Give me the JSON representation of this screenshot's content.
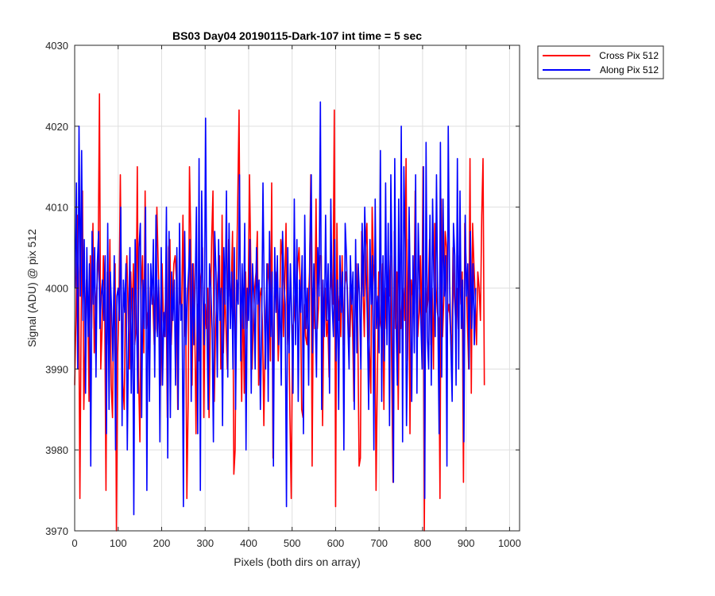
{
  "chart_data": {
    "type": "line",
    "title": "BS03 Day04 20190115-Dark-107 int time = 5 sec",
    "xlabel": "Pixels (both dirs on array)",
    "ylabel": "Signal (ADU) @ pix 512",
    "xlim": [
      0,
      1023
    ],
    "ylim": [
      3970,
      4030
    ],
    "xticks": [
      0,
      100,
      200,
      300,
      400,
      500,
      600,
      700,
      800,
      900,
      1000
    ],
    "yticks": [
      3970,
      3980,
      3990,
      4000,
      4010,
      4020,
      4030
    ],
    "grid": true,
    "legend_position": "outside-top-right",
    "series": [
      {
        "name": "Cross Pix 512",
        "color": "#ff0000",
        "x_start": 0,
        "x_step": 3,
        "values": [
          3988,
          3996,
          4009,
          4002,
          3974,
          3997,
          4012,
          3985,
          3993,
          4001,
          3999,
          3986,
          4004,
          3995,
          4008,
          3992,
          3997,
          4000,
          4003,
          4024,
          3990,
          3995,
          4004,
          3998,
          3975,
          4002,
          3993,
          4006,
          3988,
          3984,
          4000,
          4003,
          3970,
          3992,
          3998,
          4014,
          3995,
          3988,
          3985,
          4000,
          4004,
          3997,
          3990,
          4002,
          3996,
          4003,
          3993,
          3995,
          4015,
          3989,
          3981,
          4000,
          4004,
          3992,
          4012,
          3995,
          3997,
          3993,
          4000,
          4001,
          3998,
          3993,
          3995,
          4010,
          4003,
          3997,
          3988,
          4003,
          3996,
          3994,
          4002,
          3984,
          4005,
          4006,
          3993,
          3998,
          4003,
          4004,
          4001,
          3985,
          4000,
          3998,
          3997,
          4009,
          3994,
          4000,
          3974,
          3986,
          4015,
          4006,
          3988,
          4003,
          3996,
          3982,
          3998,
          3991,
          4000,
          4002,
          4005,
          3984,
          3998,
          3995,
          4000,
          3984,
          3996,
          4006,
          4012,
          3986,
          3995,
          3999,
          4002,
          4004,
          3990,
          4009,
          3992,
          4000,
          3995,
          3990,
          4006,
          3999,
          4000,
          4007,
          3977,
          3980,
          4001,
          4011,
          4022,
          3997,
          3986,
          4000,
          3987,
          4002,
          3995,
          3999,
          4014,
          4003,
          3990,
          3996,
          4000,
          4002,
          4007,
          3988,
          3999,
          4000,
          3995,
          3983,
          3994,
          3999,
          4003,
          4000,
          3991,
          4013,
          3979,
          3999,
          4002,
          4000,
          3991,
          3996,
          4006,
          4004,
          3994,
          4000,
          4008,
          3993,
          3997,
          3984,
          3974,
          3995,
          3996,
          3999,
          4000,
          4003,
          4005,
          4000,
          3985,
          3984,
          3998,
          3994,
          3993,
          3998,
          4002,
          4014,
          3978,
          4000,
          3995,
          4011,
          3995,
          3998,
          4004,
          4004,
          3983,
          3997,
          4000,
          3994,
          3996,
          3989,
          4002,
          4000,
          3998,
          4022,
          3973,
          4008,
          3996,
          3999,
          3994,
          4004,
          3993,
          4000,
          4002,
          4000,
          3994,
          3994,
          4000,
          3995,
          3986,
          3999,
          4003,
          3995,
          3978,
          3979,
          4007,
          4000,
          3994,
          4005,
          4008,
          3996,
          3992,
          3987,
          4010,
          4003,
          4000,
          3975,
          3989,
          4002,
          3996,
          3995,
          4003,
          3985,
          4000,
          3995,
          4001,
          3999,
          4004,
          3990,
          3976,
          4007,
          3995,
          4002,
          3985,
          4000,
          3995,
          3999,
          4000,
          3996,
          4016,
          3991,
          4006,
          3982,
          4001,
          3999,
          3997,
          4012,
          3998,
          3994,
          3997,
          4004,
          3994,
          4015,
          3970,
          4000,
          3997,
          3999,
          4006,
          3993,
          4000,
          3990,
          4008,
          4000,
          3997,
          3996,
          3974,
          4011,
          3994,
          3999,
          4007,
          4005,
          3997,
          3998,
          3995,
          3991,
          4005,
          3999,
          3996,
          4000,
          3995,
          4004,
          3998,
          4002,
          3976,
          4008,
          4003,
          3996,
          3990,
          4016,
          3987,
          4008,
          4003,
          3999,
          3993,
          4002,
          4000,
          3996,
          4009,
          4016,
          3988
        ]
      },
      {
        "name": "Along Pix 512",
        "color": "#0000ff",
        "x_start": 1,
        "x_step": 3,
        "values": [
          4000,
          4013,
          3990,
          4020,
          3999,
          4017,
          3996,
          4006,
          3987,
          4005,
          3994,
          4003,
          3978,
          4007,
          3998,
          4005,
          3989,
          4003,
          4007,
          3995,
          3999,
          4001,
          3996,
          4004,
          3982,
          4008,
          3985,
          4002,
          3997,
          3991,
          4004,
          3980,
          3999,
          4000,
          3996,
          4010,
          3983,
          4001,
          3997,
          4003,
          3980,
          3995,
          4005,
          3987,
          4000,
          3972,
          4006,
          3998,
          3987,
          4005,
          4008,
          3984,
          4001,
          3995,
          4010,
          3975,
          4003,
          3986,
          4003,
          3998,
          4006,
          3989,
          4009,
          3994,
          4001,
          3981,
          4005,
          3988,
          3997,
          3994,
          4010,
          3979,
          4007,
          3984,
          4002,
          3996,
          4001,
          3988,
          4005,
          3985,
          4008,
          3996,
          3998,
          3973,
          4007,
          3993,
          3999,
          4002,
          4006,
          3986,
          4003,
          3993,
          4000,
          4010,
          3982,
          4016,
          3975,
          4012,
          3999,
          3993,
          4021,
          3996,
          3985,
          4003,
          4000,
          3995,
          3981,
          4007,
          4002,
          3989,
          4006,
          3996,
          4000,
          3983,
          4005,
          3998,
          4012,
          3989,
          4008,
          3995,
          4002,
          3990,
          4005,
          3985,
          4001,
          3998,
          4014,
          3991,
          4003,
          3995,
          4008,
          3980,
          4000,
          3996,
          4006,
          3987,
          4003,
          3999,
          3990,
          4005,
          3998,
          4001,
          3985,
          3995,
          4013,
          3998,
          3990,
          4003,
          3986,
          4007,
          3994,
          4002,
          3978,
          4005,
          3997,
          4004,
          3993,
          4000,
          3988,
          4007,
          4001,
          3998,
          3973,
          4005,
          3992,
          4003,
          3996,
          3987,
          4011,
          3993,
          4006,
          3986,
          4001,
          3997,
          4004,
          3982,
          4009,
          3995,
          4000,
          3988,
          4005,
          4014,
          3992,
          4003,
          3997,
          3989,
          4005,
          3999,
          4023,
          3985,
          4001,
          3994,
          4009,
          3996,
          4003,
          3987,
          4011,
          3998,
          3994,
          4006,
          3991,
          4001,
          3985,
          4004,
          3997,
          4002,
          3980,
          4008,
          4004,
          3996,
          3990,
          4004,
          3998,
          4002,
          3985,
          4006,
          3992,
          4003,
          3999,
          3990,
          4008,
          3999,
          4010,
          4003,
          3996,
          3985,
          4006,
          3998,
          4004,
          3980,
          4011,
          3995,
          3999,
          3992,
          4017,
          3986,
          4004,
          3991,
          4013,
          3993,
          4008,
          3983,
          4014,
          4001,
          3976,
          4016,
          3996,
          3988,
          4011,
          3992,
          4020,
          3981,
          4015,
          4005,
          3983,
          3994,
          4010,
          3998,
          3986,
          4004,
          3992,
          4014,
          3987,
          4008,
          4000,
          3996,
          3990,
          4015,
          3974,
          4018,
          3994,
          3990,
          4009,
          3988,
          4011,
          4001,
          3994,
          4014,
          3997,
          3982,
          4018,
          3989,
          4011,
          3999,
          4004,
          3978,
          4020,
          4001,
          3993,
          3986,
          4008,
          4004,
          3988,
          4016,
          3990,
          4012,
          3995,
          4001,
          3981,
          4009,
          3999,
          4003,
          3990,
          4007,
          3995,
          4003,
          3993,
          4000
        ]
      }
    ]
  }
}
